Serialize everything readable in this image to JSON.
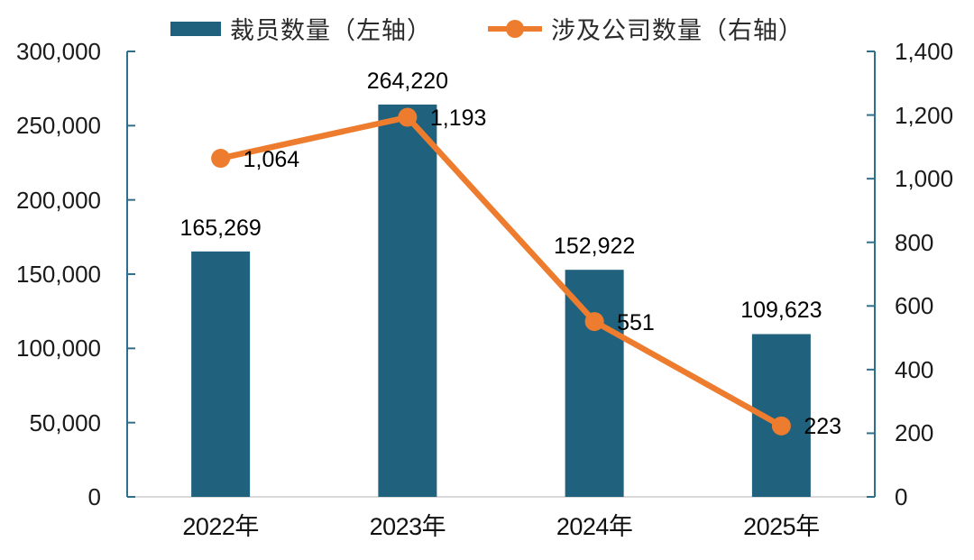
{
  "legend": {
    "items": [
      {
        "label": "裁员数量（左轴）",
        "type": "bar",
        "color": "#20627E"
      },
      {
        "label": "涉及公司数量（右轴）",
        "type": "line",
        "color": "#ED7C2F"
      }
    ]
  },
  "chart_data": {
    "type": "bar+line",
    "categories": [
      "2022年",
      "2023年",
      "2024年",
      "2025年"
    ],
    "series": [
      {
        "name": "裁员数量（左轴）",
        "type": "bar",
        "axis": "left",
        "color": "#20627E",
        "values": [
          165269,
          264220,
          152922,
          109623
        ],
        "labels": [
          "165,269",
          "264,220",
          "152,922",
          "109,623"
        ]
      },
      {
        "name": "涉及公司数量（右轴）",
        "type": "line",
        "axis": "right",
        "color": "#ED7C2F",
        "values": [
          1064,
          1193,
          551,
          223
        ],
        "labels": [
          "1,064",
          "1,193",
          "551",
          "223"
        ]
      }
    ],
    "left_axis": {
      "min": 0,
      "max": 300000,
      "step": 50000,
      "tick_labels": [
        "0",
        "50,000",
        "100,000",
        "150,000",
        "200,000",
        "250,000",
        "300,000"
      ]
    },
    "right_axis": {
      "min": 0,
      "max": 1400,
      "step": 200,
      "tick_labels": [
        "0",
        "200",
        "400",
        "600",
        "800",
        "1,000",
        "1,200",
        "1,400"
      ]
    },
    "grid": false,
    "legend_position": "top",
    "colors": {
      "bar": "#20627E",
      "line": "#ED7C2F",
      "vertical_axis": "#2E6F8E",
      "bottom_axis": "#D9D9D9",
      "label_text": "#000000"
    }
  }
}
